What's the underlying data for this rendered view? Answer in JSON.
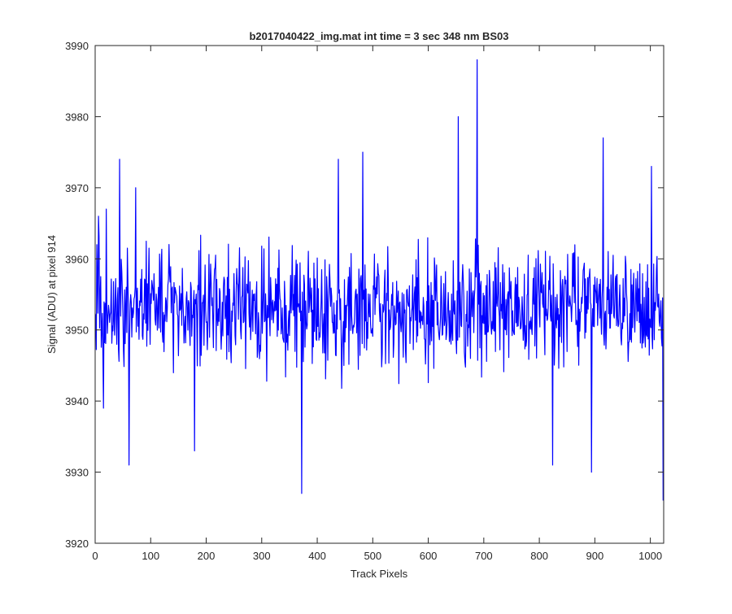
{
  "chart_data": {
    "type": "line",
    "title": "b2017040422_img.mat int time = 3 sec  348 nm BS03",
    "xlabel": "Track Pixels",
    "ylabel": "Signal (ADU) at pixel 914",
    "xlim": [
      0,
      1024
    ],
    "ylim": [
      3920,
      3990
    ],
    "xticks": [
      0,
      100,
      200,
      300,
      400,
      500,
      600,
      700,
      800,
      900,
      1000
    ],
    "yticks": [
      3920,
      3930,
      3940,
      3950,
      3960,
      3970,
      3980,
      3990
    ],
    "grid": false,
    "legend": "none",
    "series": [
      {
        "color": "#0000ff",
        "noise": {
          "count": 1024,
          "mean": 3953,
          "amplitude": 9,
          "seed": 914
        },
        "key_points": [
          {
            "x": 1,
            "y": 3952
          },
          {
            "x": 3,
            "y": 3962
          },
          {
            "x": 6,
            "y": 3966
          },
          {
            "x": 15,
            "y": 3939
          },
          {
            "x": 20,
            "y": 3967
          },
          {
            "x": 44,
            "y": 3974
          },
          {
            "x": 61,
            "y": 3931
          },
          {
            "x": 73,
            "y": 3970
          },
          {
            "x": 179,
            "y": 3933
          },
          {
            "x": 372,
            "y": 3927
          },
          {
            "x": 438,
            "y": 3974
          },
          {
            "x": 482,
            "y": 3975
          },
          {
            "x": 654,
            "y": 3980
          },
          {
            "x": 688,
            "y": 3988
          },
          {
            "x": 824,
            "y": 3931
          },
          {
            "x": 894,
            "y": 3930
          },
          {
            "x": 915,
            "y": 3977
          },
          {
            "x": 1002,
            "y": 3973
          },
          {
            "x": 1023,
            "y": 3926
          }
        ]
      }
    ]
  }
}
